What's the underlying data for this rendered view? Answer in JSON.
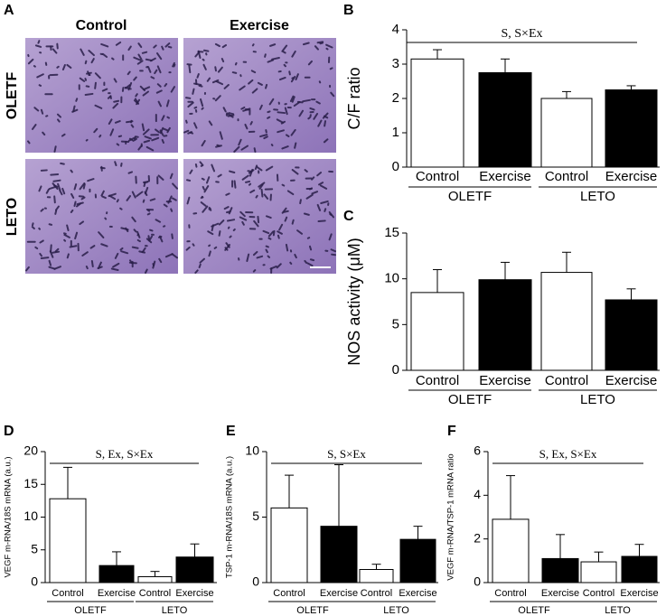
{
  "image_panel": {
    "label": "A",
    "columns": [
      "Control",
      "Exercise"
    ],
    "rows": [
      "OLETF",
      "LETO"
    ]
  },
  "chart_data": [
    {
      "type": "bar",
      "panel_label": "B",
      "ylabel": "C/F ratio",
      "annotation": "S, S×Ex",
      "categories": [
        "Control",
        "Exercise",
        "Control",
        "Exercise"
      ],
      "groups": [
        "OLETF",
        "LETO"
      ],
      "values": [
        3.15,
        2.75,
        2.0,
        2.25
      ],
      "errors": [
        0.27,
        0.4,
        0.2,
        0.12
      ],
      "colors": [
        "#ffffff",
        "#000000",
        "#ffffff",
        "#000000"
      ],
      "ylim": [
        0,
        4
      ],
      "yticks": [
        0,
        1,
        2,
        3,
        4
      ]
    },
    {
      "type": "bar",
      "panel_label": "C",
      "ylabel": "NOS activity (μM)",
      "categories": [
        "Control",
        "Exercise",
        "Control",
        "Exercise"
      ],
      "groups": [
        "OLETF",
        "LETO"
      ],
      "values": [
        8.5,
        9.9,
        10.7,
        7.7
      ],
      "errors": [
        2.5,
        1.9,
        2.2,
        1.2
      ],
      "colors": [
        "#ffffff",
        "#000000",
        "#ffffff",
        "#000000"
      ],
      "ylim": [
        0,
        15
      ],
      "yticks": [
        0,
        5,
        10,
        15
      ]
    },
    {
      "type": "bar",
      "panel_label": "D",
      "ylabel": "VEGF m-RNA/18S mRNA (a.u.)",
      "annotation": "S, Ex, S×Ex",
      "categories": [
        "Control",
        "Exercise",
        "Control",
        "Exercise"
      ],
      "groups": [
        "OLETF",
        "LETO"
      ],
      "values": [
        12.8,
        2.6,
        0.9,
        3.9
      ],
      "errors": [
        4.8,
        2.1,
        0.8,
        2.0
      ],
      "colors": [
        "#ffffff",
        "#000000",
        "#ffffff",
        "#000000"
      ],
      "ylim": [
        0,
        20
      ],
      "yticks": [
        0,
        5,
        10,
        15,
        20
      ]
    },
    {
      "type": "bar",
      "panel_label": "E",
      "ylabel": "TSP-1 m-RNA/18S mRNA (a.u.)",
      "annotation": "S, S×Ex",
      "categories": [
        "Control",
        "Exercise",
        "Control",
        "Exercise"
      ],
      "groups": [
        "OLETF",
        "LETO"
      ],
      "values": [
        5.7,
        4.3,
        1.0,
        3.3
      ],
      "errors": [
        2.5,
        4.7,
        0.4,
        1.0
      ],
      "colors": [
        "#ffffff",
        "#000000",
        "#ffffff",
        "#000000"
      ],
      "ylim": [
        0,
        10
      ],
      "yticks": [
        0,
        5,
        10
      ]
    },
    {
      "type": "bar",
      "panel_label": "F",
      "ylabel": "VEGF m-RNA/TSP-1 mRNA ratio",
      "annotation": "S, Ex, S×Ex",
      "categories": [
        "Control",
        "Exercise",
        "Control",
        "Exercise"
      ],
      "groups": [
        "OLETF",
        "LETO"
      ],
      "values": [
        2.9,
        1.1,
        0.95,
        1.2
      ],
      "errors": [
        2.0,
        1.1,
        0.45,
        0.55
      ],
      "colors": [
        "#ffffff",
        "#000000",
        "#ffffff",
        "#000000"
      ],
      "ylim": [
        0,
        6
      ],
      "yticks": [
        0,
        2,
        4,
        6
      ]
    }
  ]
}
